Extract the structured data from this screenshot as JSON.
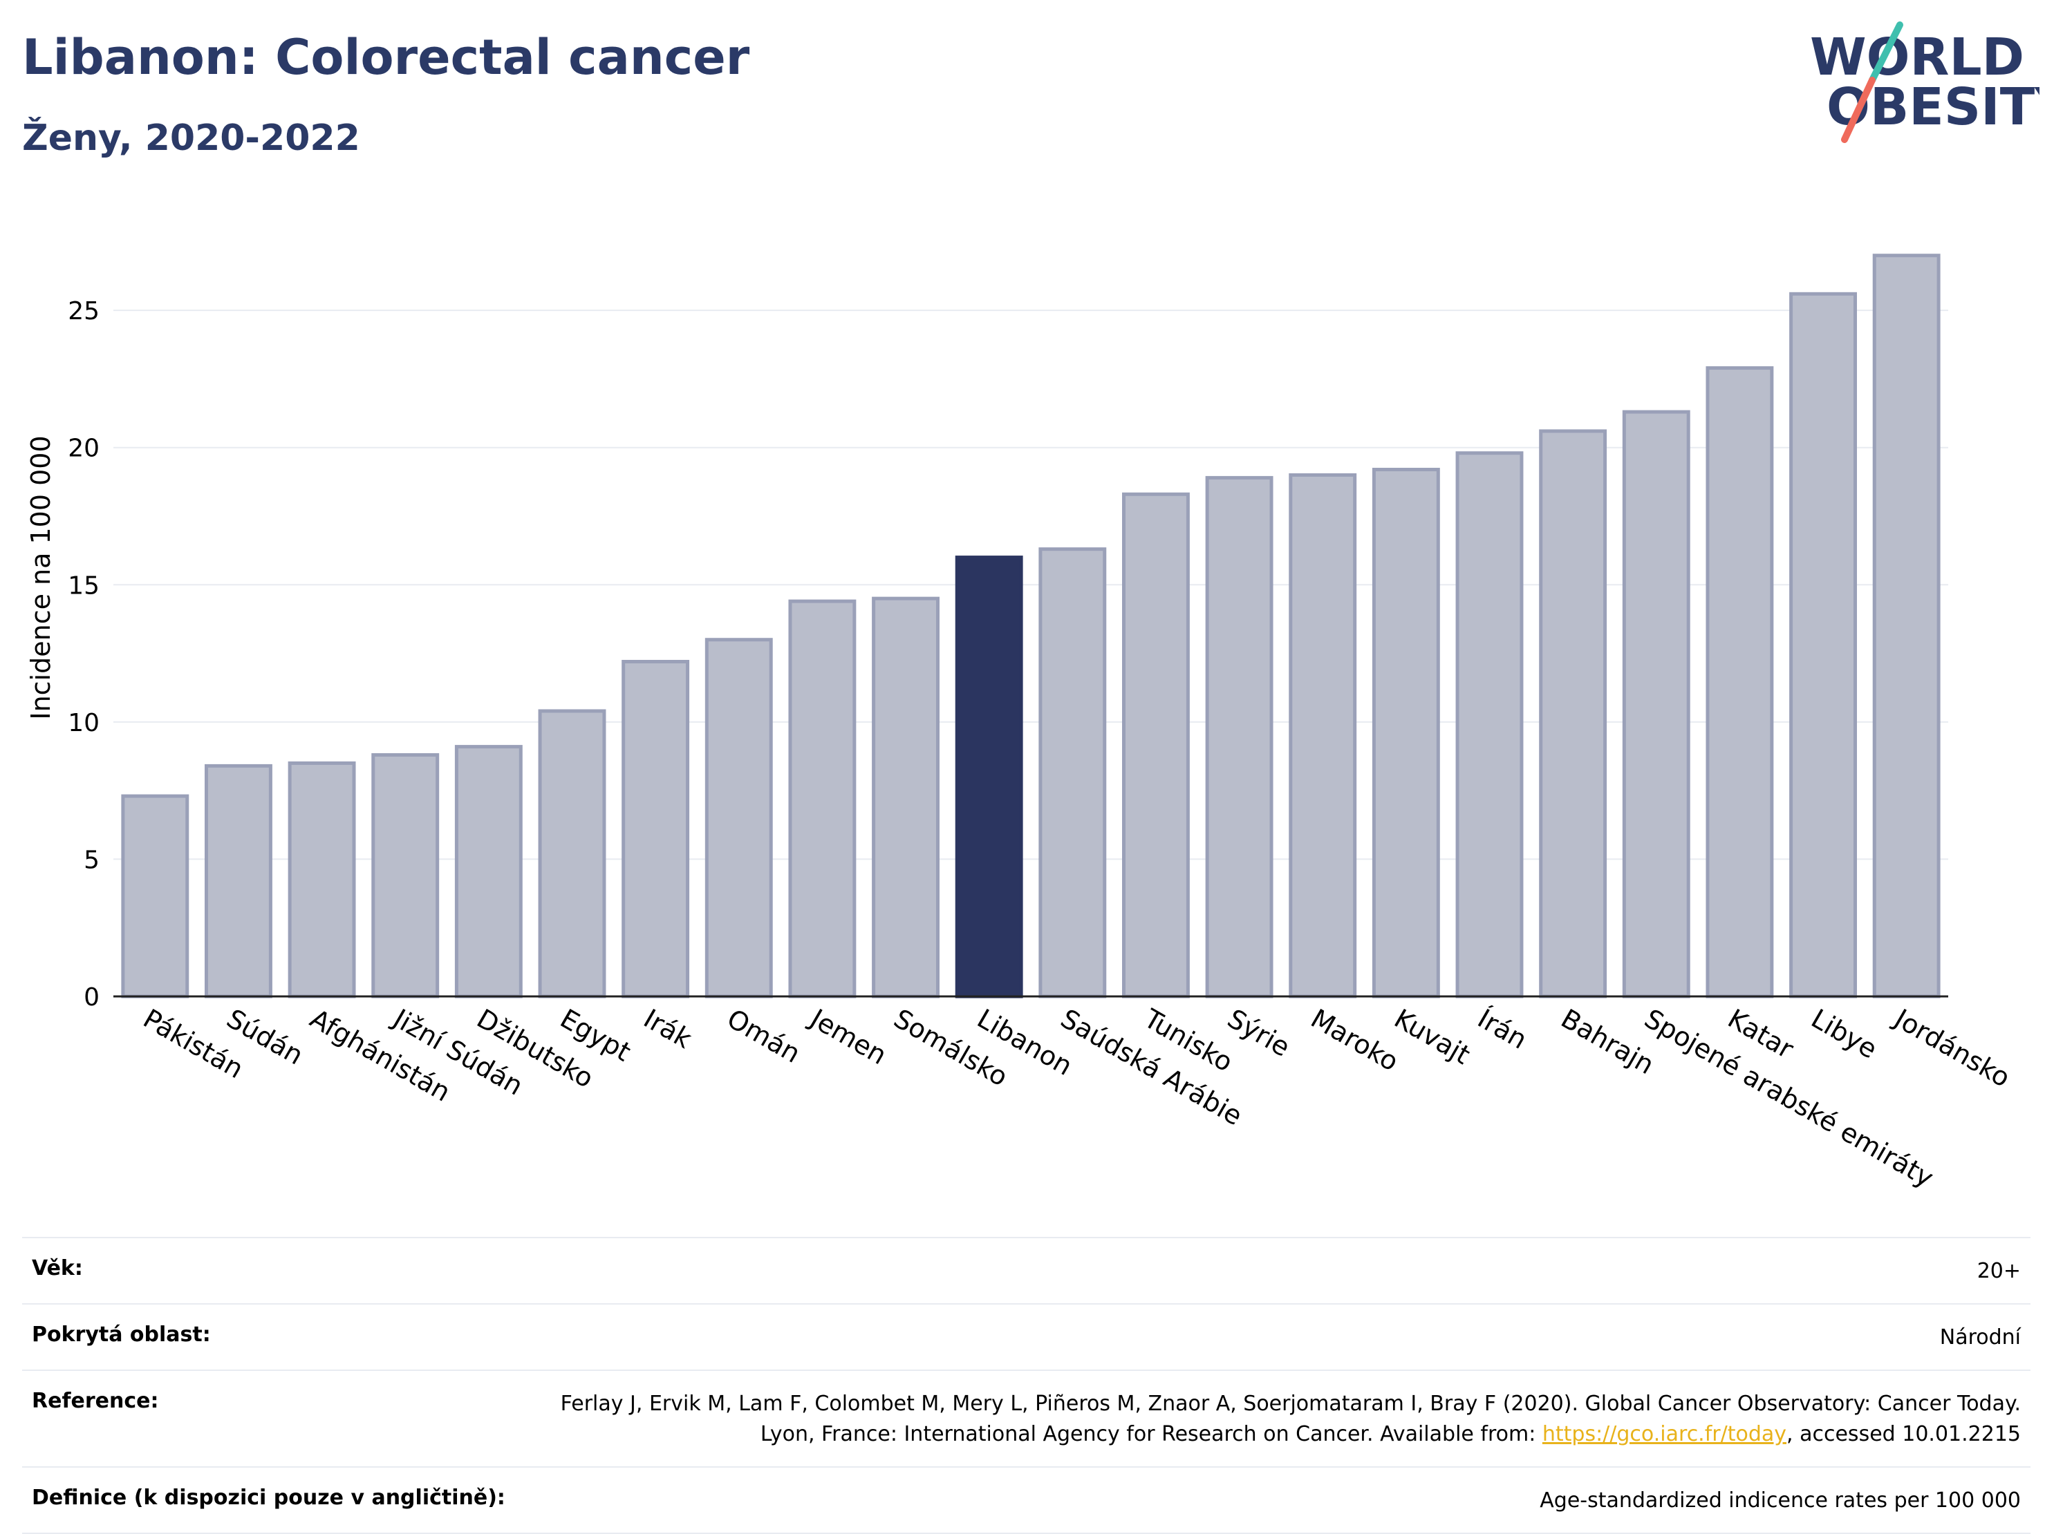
{
  "header": {
    "title": "Libanon: Colorectal cancer",
    "subtitle": "Ženy, 2020-2022"
  },
  "logo": {
    "line1": "WORLD",
    "line2": "OBESITY"
  },
  "colors": {
    "bar": "#b9bdcb",
    "bar_stroke": "#9aa0b8",
    "highlight": "#2b3560",
    "title": "#2b3a67",
    "grid": "#e8ebf1",
    "link": "#e8b21b",
    "logo_teal": "#3fbfae",
    "logo_coral": "#ef6a5b"
  },
  "chart_data": {
    "type": "bar",
    "ylabel": "Incidence na 100 000",
    "ylim": [
      0,
      28
    ],
    "yticks": [
      0,
      5,
      10,
      15,
      20,
      25
    ],
    "grid": true,
    "highlight": "Libanon",
    "categories": [
      "Pákistán",
      "Súdán",
      "Afghánistán",
      "Jižní Súdán",
      "Džibutsko",
      "Egypt",
      "Irák",
      "Omán",
      "Jemen",
      "Somálsko",
      "Libanon",
      "Saúdská Arábie",
      "Tunisko",
      "Sýrie",
      "Maroko",
      "Kuvajt",
      "Írán",
      "Bahrajn",
      "Spojené arabské emiráty",
      "Katar",
      "Libye",
      "Jordánsko"
    ],
    "values": [
      7.3,
      8.4,
      8.5,
      8.8,
      9.1,
      10.4,
      12.2,
      13.0,
      14.4,
      14.5,
      16.0,
      16.3,
      18.3,
      18.9,
      19.0,
      19.2,
      19.8,
      20.6,
      21.3,
      22.9,
      25.6,
      27.0
    ]
  },
  "meta": {
    "age_label": "Věk:",
    "age_value": "20+",
    "area_label": "Pokrytá oblast:",
    "area_value": "Národní",
    "ref_label": "Reference:",
    "ref_text_1": "Ferlay J, Ervik M, Lam F, Colombet M, Mery L, Piñeros M, Znaor A, Soerjomataram I, Bray F (2020). Global Cancer Observatory: Cancer Today. Lyon, France: International Agency for Research on Cancer. Available from: ",
    "ref_link": "https://gco.iarc.fr/today",
    "ref_text_2": ", accessed 10.01.2215",
    "def_label": "Definice (k dispozici pouze v angličtině):",
    "def_value": "Age-standardized indicence rates per 100 000"
  }
}
